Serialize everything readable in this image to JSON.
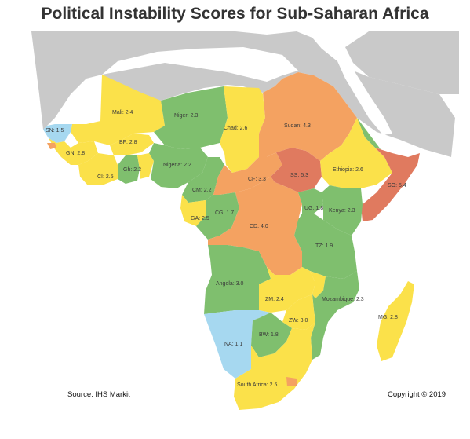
{
  "title": "Political Instability Scores for Sub-Saharan Africa",
  "source": "Source: IHS Markit",
  "copyright": "Copyright © 2019",
  "colors": {
    "background_land": "#c9c9c9",
    "water": "#ffffff",
    "low": "#a6d8f0",
    "medium_low": "#7fbf6e",
    "medium": "#fbe14a",
    "high": "#f4a261",
    "very_high": "#e07a5f"
  },
  "countries": [
    {
      "id": "mali",
      "label": "Mali: 2.4",
      "score": 2.4,
      "level": "medium"
    },
    {
      "id": "niger",
      "label": "Niger: 2.3",
      "score": 2.3,
      "level": "medium_low"
    },
    {
      "id": "chad",
      "label": "Chad: 2.6",
      "score": 2.6,
      "level": "medium"
    },
    {
      "id": "sudan",
      "label": "Sudan: 4.3",
      "score": 4.3,
      "level": "high"
    },
    {
      "id": "senegal",
      "label": "SN: 1.5",
      "score": 1.5,
      "level": "low"
    },
    {
      "id": "burkina",
      "label": "BF: 2.8",
      "score": 2.8,
      "level": "medium"
    },
    {
      "id": "guinea",
      "label": "GN: 2.8",
      "score": 2.8,
      "level": "medium"
    },
    {
      "id": "ghana",
      "label": "Gh: 2.2",
      "score": 2.2,
      "level": "medium_low"
    },
    {
      "id": "cotedivoire",
      "label": "CI: 2.5",
      "score": 2.5,
      "level": "medium"
    },
    {
      "id": "nigeria",
      "label": "Nigeria: 2.2",
      "score": 2.2,
      "level": "medium_low"
    },
    {
      "id": "cameroon",
      "label": "CM: 2.2",
      "score": 2.2,
      "level": "medium_low"
    },
    {
      "id": "car",
      "label": "CF: 3.3",
      "score": 3.3,
      "level": "high"
    },
    {
      "id": "southsudan",
      "label": "SS: 5.3",
      "score": 5.3,
      "level": "very_high"
    },
    {
      "id": "ethiopia",
      "label": "Ethiopia: 2.6",
      "score": 2.6,
      "level": "medium"
    },
    {
      "id": "somalia",
      "label": "SO: 5.4",
      "score": 5.4,
      "level": "very_high"
    },
    {
      "id": "gabon",
      "label": "GA: 2.5",
      "score": 2.5,
      "level": "medium"
    },
    {
      "id": "congo",
      "label": "CG: 1.7",
      "score": 1.7,
      "level": "medium_low"
    },
    {
      "id": "drc",
      "label": "CD: 4.0",
      "score": 4.0,
      "level": "high"
    },
    {
      "id": "uganda",
      "label": "UG: 1.8",
      "score": 1.8,
      "level": "medium_low"
    },
    {
      "id": "kenya",
      "label": "Kenya: 2.3",
      "score": 2.3,
      "level": "medium_low"
    },
    {
      "id": "tanzania",
      "label": "TZ: 1.9",
      "score": 1.9,
      "level": "medium_low"
    },
    {
      "id": "angola",
      "label": "Angola: 3.0",
      "score": 3.0,
      "level": "medium_low"
    },
    {
      "id": "zambia",
      "label": "ZM: 2.4",
      "score": 2.4,
      "level": "medium"
    },
    {
      "id": "mozambique",
      "label": "Mozambique: 2.3",
      "score": 2.3,
      "level": "medium_low"
    },
    {
      "id": "zimbabwe",
      "label": "ZW: 3.0",
      "score": 3.0,
      "level": "medium"
    },
    {
      "id": "madagascar",
      "label": "MG: 2.8",
      "score": 2.8,
      "level": "medium"
    },
    {
      "id": "namibia",
      "label": "NA: 1.1",
      "score": 1.1,
      "level": "low"
    },
    {
      "id": "botswana",
      "label": "BW: 1.8",
      "score": 1.8,
      "level": "medium_low"
    },
    {
      "id": "southafrica",
      "label": "South Africa: 2.5",
      "score": 2.5,
      "level": "medium"
    }
  ]
}
